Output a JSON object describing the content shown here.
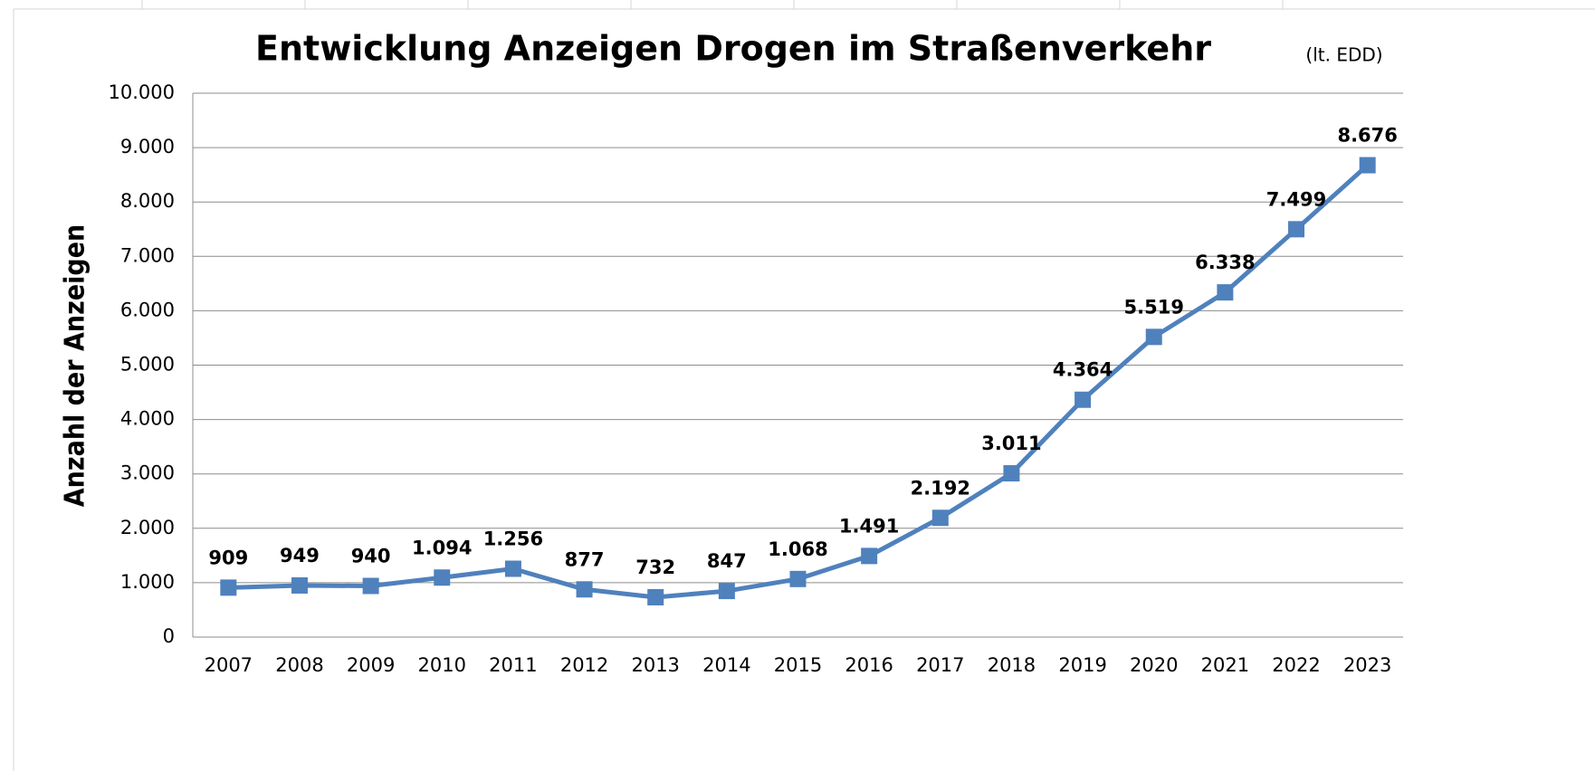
{
  "chart_data": {
    "type": "line",
    "title": "Entwicklung Anzeigen Drogen im Straßenverkehr",
    "subtitle": "(lt. EDD)",
    "y_label": "Anzahl der Anzeigen",
    "categories": [
      "2007",
      "2008",
      "2009",
      "2010",
      "2011",
      "2012",
      "2013",
      "2014",
      "2015",
      "2016",
      "2017",
      "2018",
      "2019",
      "2020",
      "2021",
      "2022",
      "2023"
    ],
    "series": [
      {
        "color": "#4f81bd",
        "values": [
          909,
          949,
          940,
          1094,
          1256,
          877,
          732,
          847,
          1068,
          1491,
          2192,
          3011,
          4364,
          5519,
          6338,
          7499,
          8676
        ],
        "value_labels": [
          "909",
          "949",
          "940",
          "1.094",
          "1.256",
          "877",
          "732",
          "847",
          "1.068",
          "1.491",
          "2.192",
          "3.011",
          "4.364",
          "5.519",
          "6.338",
          "7.499",
          "8.676"
        ]
      }
    ],
    "ylim": [
      0,
      10000
    ],
    "yticks": [
      0,
      {
        "value": 1000,
        "label": "1.000"
      },
      {
        "value": 2000,
        "label": "2.000"
      },
      {
        "value": 3000,
        "label": "3.000"
      },
      {
        "value": 4000,
        "label": "4.000"
      },
      {
        "value": 5000,
        "label": "5.000"
      },
      {
        "value": 6000,
        "label": "6.000"
      },
      {
        "value": 7000,
        "label": "7.000"
      },
      {
        "value": 8000,
        "label": "8.000"
      },
      {
        "value": 9000,
        "label": "9.000"
      },
      {
        "value": 10000,
        "label": "10.000"
      }
    ],
    "grid": true
  }
}
